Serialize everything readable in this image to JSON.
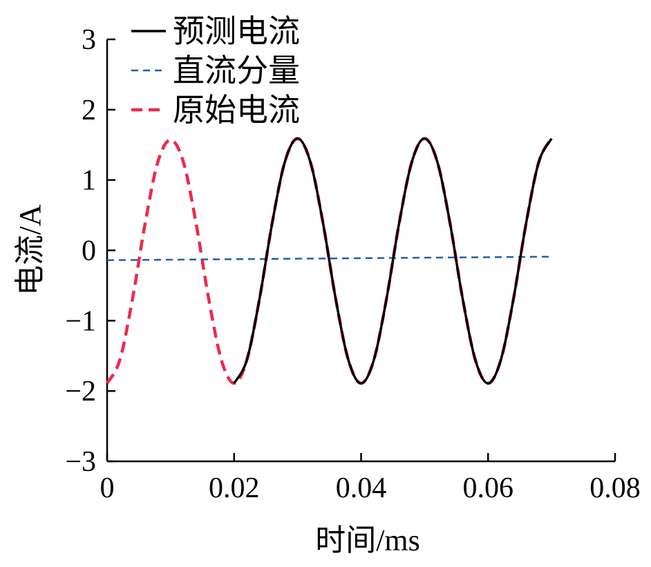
{
  "chart_data": {
    "type": "line",
    "title": "",
    "xlabel": "时间/ms",
    "ylabel": "电流/A",
    "xlim": [
      0,
      0.08
    ],
    "ylim": [
      -3,
      3
    ],
    "xticks": [
      0,
      0.02,
      0.04,
      0.06,
      0.08
    ],
    "xtick_labels": [
      "0",
      "0.02",
      "0.04",
      "0.06",
      "0.08"
    ],
    "yticks": [
      3,
      2,
      1,
      0,
      -1,
      -2,
      -3
    ],
    "ytick_labels": [
      "3",
      "2",
      "1",
      "0",
      "−1",
      "−2",
      "−3"
    ],
    "grid": false,
    "legend_position": "top-left",
    "series": [
      {
        "name": "预测电流",
        "color": "#000000",
        "style": "solid",
        "x": [
          0.02,
          0.022,
          0.024,
          0.026,
          0.028,
          0.03,
          0.032,
          0.034,
          0.036,
          0.038,
          0.04,
          0.042,
          0.044,
          0.046,
          0.048,
          0.05,
          0.052,
          0.054,
          0.056,
          0.058,
          0.06,
          0.062,
          0.064,
          0.066,
          0.068,
          0.07
        ],
        "y": [
          -1.89,
          -1.56,
          -0.69,
          0.39,
          1.26,
          1.59,
          1.26,
          0.39,
          -0.69,
          -1.56,
          -1.89,
          -1.56,
          -0.69,
          0.39,
          1.26,
          1.59,
          1.26,
          0.39,
          -0.69,
          -1.56,
          -1.89,
          -1.56,
          -0.69,
          0.39,
          1.26,
          1.59
        ]
      },
      {
        "name": "直流分量",
        "color": "#1f5fa8",
        "style": "dashed",
        "x": [
          0,
          0.07
        ],
        "y": [
          -0.14,
          -0.09
        ]
      },
      {
        "name": "原始电流",
        "color": "#f0284a",
        "style": "dashed",
        "x": [
          0,
          0.002,
          0.004,
          0.006,
          0.008,
          0.01,
          0.012,
          0.014,
          0.016,
          0.018,
          0.02,
          0.022,
          0.024,
          0.026,
          0.028,
          0.03,
          0.032,
          0.034,
          0.036,
          0.038,
          0.04,
          0.042,
          0.044,
          0.046,
          0.048,
          0.05,
          0.052,
          0.054,
          0.056,
          0.058,
          0.06,
          0.062,
          0.064,
          0.066,
          0.068,
          0.07
        ],
        "y": [
          -1.89,
          -1.56,
          -0.69,
          0.39,
          1.26,
          1.57,
          1.26,
          0.39,
          -0.69,
          -1.56,
          -1.89,
          -1.56,
          -0.69,
          0.39,
          1.26,
          1.59,
          1.26,
          0.39,
          -0.69,
          -1.56,
          -1.89,
          -1.56,
          -0.69,
          0.39,
          1.26,
          1.59,
          1.26,
          0.39,
          -0.69,
          -1.56,
          -1.89,
          -1.56,
          -0.69,
          0.39,
          1.26,
          1.59
        ]
      }
    ]
  }
}
